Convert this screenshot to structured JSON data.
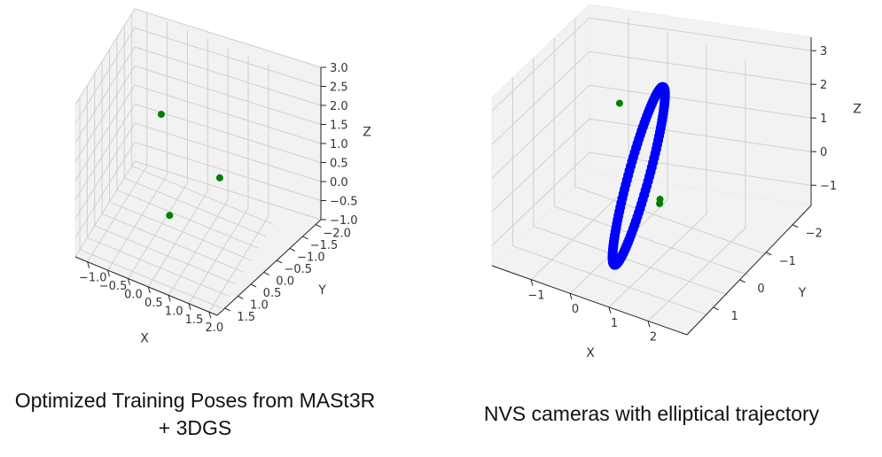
{
  "chart_data": [
    {
      "type": "scatter",
      "caption": "Optimized Training Poses from MASt3R + 3DGS",
      "xlabel": "X",
      "ylabel": "Y",
      "zlabel": "Z",
      "xlim": [
        -1.3,
        2.2
      ],
      "ylim": [
        -2.2,
        1.8
      ],
      "zlim": [
        -1.0,
        3.0
      ],
      "xticks": [
        -1.0,
        -0.5,
        0.0,
        0.5,
        1.0,
        1.5,
        2.0
      ],
      "yticks": [
        -2.0,
        -1.5,
        -1.0,
        -0.5,
        0.0,
        0.5,
        1.0,
        1.5
      ],
      "zticks": [
        -1.0,
        -0.5,
        0.0,
        0.5,
        1.0,
        1.5,
        2.0,
        2.5,
        3.0
      ],
      "xtick_labels": [
        "−1.0",
        "−0.5",
        "0.0",
        "0.5",
        "1.0",
        "1.5",
        "2.0"
      ],
      "ytick_labels": [
        "−2.0",
        "−1.5",
        "−1.0",
        "−0.5",
        "0.0",
        "0.5",
        "1.0",
        "1.5"
      ],
      "ztick_labels": [
        "−1.0",
        "−0.5",
        "0.0",
        "0.5",
        "1.0",
        "1.5",
        "2.0",
        "2.5",
        "3.0"
      ],
      "series": [
        {
          "color": "#008000",
          "points": [
            [
              0.6,
              1.2,
              3.2
            ],
            [
              1.2,
              -1.1,
              0.35
            ],
            [
              0.0,
              -1.0,
              -1.1
            ]
          ]
        }
      ],
      "grid": true
    },
    {
      "type": "scatter",
      "caption": "NVS cameras with elliptical trajectory",
      "xlabel": "X",
      "ylabel": "Y",
      "zlabel": "Z",
      "xlim": [
        -2.0,
        3.0
      ],
      "ylim": [
        -2.7,
        2.0
      ],
      "zlim": [
        -1.6,
        3.4
      ],
      "xticks": [
        -1,
        0,
        1,
        2
      ],
      "yticks": [
        -2,
        -1,
        0,
        1
      ],
      "zticks": [
        -1,
        0,
        1,
        2,
        3
      ],
      "xtick_labels": [
        "−1",
        "0",
        "1",
        "2"
      ],
      "ytick_labels": [
        "−2",
        "−1",
        "0",
        "1"
      ],
      "ztick_labels": [
        "−1",
        "0",
        "1",
        "2",
        "3"
      ],
      "series": [
        {
          "color": "#0000ff",
          "kind": "ellipse-trajectory",
          "center": [
            0.7,
            0.0,
            1.0
          ],
          "u": [
            0.6,
            1.0,
            0.0
          ],
          "v": [
            0.35,
            -0.6,
            2.3
          ]
        },
        {
          "color": "#008000",
          "points": [
            [
              0.5,
              0.55,
              3.4
            ],
            [
              1.5,
              0.5,
              0.8
            ],
            [
              0.5,
              -1.4,
              -0.6
            ]
          ]
        }
      ],
      "grid": true
    }
  ]
}
